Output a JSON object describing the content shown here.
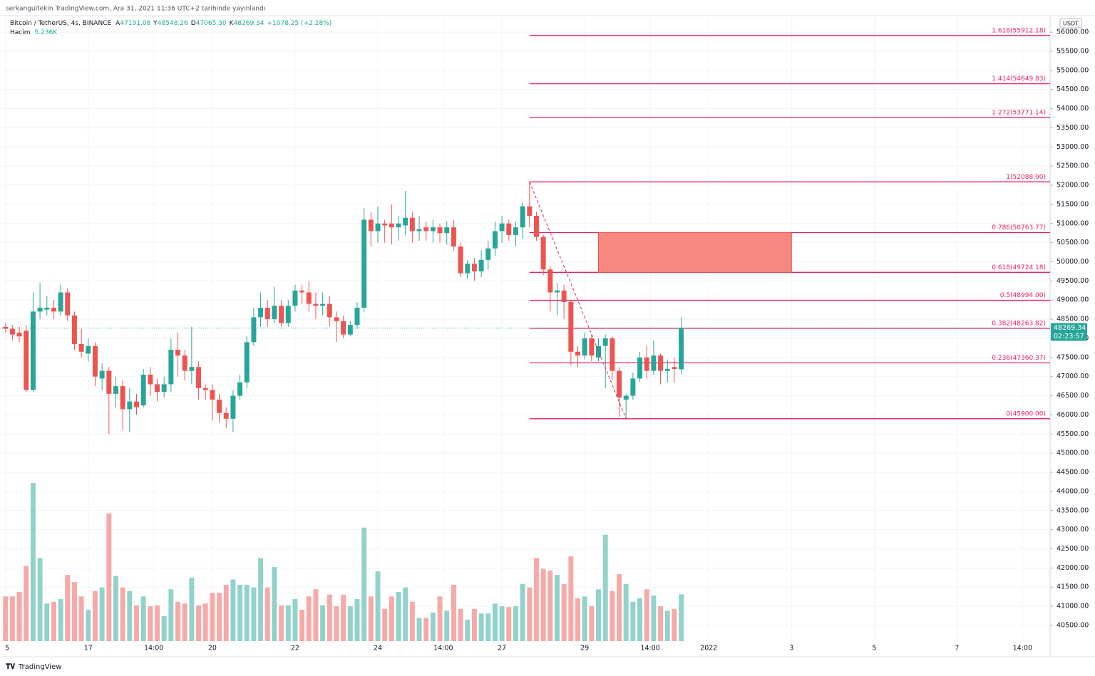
{
  "header": "serkangultekin TradingView.com, Ara 31, 2021 11:36 UTC+2 tarihinde yayınlandı",
  "footer": "TradingView",
  "chart_data": {
    "type": "candlestick",
    "legend": {
      "symbol": "Bitcoin / TetherUS, 4s, BINANCE",
      "ohlc": [
        {
          "key": "A",
          "value": "47191.08"
        },
        {
          "key": "Y",
          "value": "48548.26"
        },
        {
          "key": "D",
          "value": "47065.30"
        },
        {
          "key": "K",
          "value": "48269.34"
        }
      ],
      "change": "+1078.25 (+2.28%)",
      "volume_name": "Hacim",
      "volume_value": "5.236K"
    },
    "currency": "USDT",
    "countdown": "02:23:57",
    "up_color": "#26a69a",
    "down_color": "#ef5350",
    "volume_up_color": "#92d2cc",
    "volume_down_color": "#f7a9a7",
    "fib_color": "#e91e63",
    "zone_color": "#f7877f",
    "open": [
      48300,
      48250,
      48150,
      48200,
      46650,
      48700,
      48750,
      48800,
      48700,
      49200,
      48600,
      47850,
      47600,
      47800,
      46950,
      47150,
      46550,
      46750,
      46150,
      46350,
      46250,
      47050,
      46800,
      46600,
      46800,
      47700,
      47550,
      47150,
      47250,
      46700,
      46650,
      46400,
      46050,
      45900,
      46500,
      46850,
      47900,
      48550,
      48800,
      48500,
      48850,
      48400,
      48850,
      49250,
      49200,
      48900,
      48850,
      48900,
      48550,
      48450,
      48100,
      48350,
      48800,
      51100,
      50800,
      51000,
      51000,
      50900,
      50950,
      51150,
      50800,
      50900,
      50800,
      50900,
      50750,
      50900,
      50400,
      49700,
      49950,
      49750,
      50050,
      50350,
      50800,
      51000,
      50700,
      50900,
      51450,
      51200,
      50650,
      49800,
      49200,
      49250,
      48950,
      47650,
      47550,
      48000,
      47500,
      47800,
      48000,
      47150,
      46400,
      46500,
      46950,
      47500,
      47150,
      47550,
      47150,
      47250,
      47191.08
    ],
    "high": [
      48400,
      48350,
      48300,
      48350,
      49200,
      49450,
      49100,
      49000,
      49400,
      49300,
      48700,
      48250,
      48000,
      47900,
      47350,
      47250,
      47000,
      46900,
      46700,
      46550,
      47200,
      47250,
      46950,
      47000,
      48000,
      48150,
      47700,
      48300,
      47400,
      46800,
      46800,
      46550,
      46200,
      46650,
      47050,
      48050,
      48800,
      49200,
      49000,
      49350,
      49000,
      49000,
      49400,
      49400,
      49500,
      49200,
      49200,
      49100,
      48700,
      48600,
      48450,
      48950,
      51400,
      51300,
      51450,
      51100,
      51500,
      51200,
      51850,
      51300,
      51200,
      51050,
      51100,
      51000,
      51050,
      51100,
      50500,
      50050,
      50100,
      50300,
      50550,
      51050,
      51200,
      51100,
      51050,
      51550,
      52088,
      51300,
      50700,
      49900,
      49450,
      49400,
      49000,
      47800,
      48150,
      48100,
      48000,
      48100,
      48050,
      47250,
      46550,
      47100,
      47650,
      47800,
      47950,
      47600,
      47450,
      47500,
      48548.26
    ],
    "low": [
      48150,
      47950,
      47900,
      46600,
      46600,
      48500,
      48600,
      48500,
      48600,
      48450,
      47700,
      47500,
      47400,
      46750,
      46650,
      45500,
      46200,
      45600,
      45550,
      46000,
      46200,
      46500,
      46350,
      46450,
      46600,
      47000,
      46900,
      46800,
      46400,
      46400,
      45850,
      45800,
      45650,
      45550,
      46400,
      46700,
      47800,
      48300,
      48300,
      48400,
      48300,
      48300,
      48700,
      48900,
      48700,
      48500,
      48600,
      48300,
      47900,
      48000,
      48050,
      48250,
      48700,
      50400,
      50500,
      50500,
      50450,
      50550,
      50700,
      50500,
      50550,
      50550,
      50500,
      50500,
      50450,
      50300,
      49600,
      49550,
      49500,
      49600,
      49800,
      50150,
      50500,
      50550,
      50400,
      50600,
      50900,
      50550,
      49650,
      48700,
      48600,
      48500,
      47300,
      47250,
      47450,
      47400,
      47400,
      46700,
      46900,
      45950,
      45900,
      46400,
      46850,
      46950,
      47050,
      46800,
      46850,
      46850,
      47065.3
    ],
    "close": [
      48250,
      48100,
      48050,
      46650,
      48700,
      48800,
      48800,
      48700,
      49200,
      48600,
      47850,
      47650,
      47800,
      47000,
      47150,
      46550,
      46750,
      46150,
      46350,
      46200,
      47050,
      46800,
      46600,
      46800,
      47700,
      47550,
      47150,
      47250,
      46700,
      46650,
      46400,
      46050,
      45900,
      46500,
      46850,
      47900,
      48550,
      48800,
      48500,
      48850,
      48400,
      48850,
      49250,
      49200,
      48900,
      48850,
      48900,
      48550,
      48450,
      48100,
      48350,
      48800,
      51100,
      50800,
      51000,
      50950,
      50900,
      51000,
      51150,
      50800,
      50850,
      50800,
      50900,
      50750,
      50900,
      50400,
      49700,
      49950,
      49750,
      50050,
      50350,
      50800,
      51000,
      50700,
      50900,
      51450,
      51200,
      50650,
      49800,
      49200,
      49250,
      48950,
      47650,
      47550,
      48000,
      47550,
      47800,
      48000,
      47150,
      46450,
      46500,
      46950,
      47500,
      47150,
      47550,
      47150,
      47200,
      47200,
      48269.34
    ],
    "volume": [
      5.0,
      5.0,
      5.5,
      8.4,
      17.7,
      9.3,
      4.2,
      4.4,
      4.7,
      7.4,
      6.6,
      5.0,
      3.5,
      5.6,
      6.0,
      14.3,
      7.3,
      6.0,
      5.6,
      4.0,
      5.0,
      3.9,
      4.0,
      2.8,
      5.8,
      4.4,
      4.2,
      7.1,
      4.0,
      4.2,
      5.4,
      5.4,
      6.3,
      6.9,
      6.3,
      6.3,
      6.0,
      9.3,
      6.0,
      8.3,
      4.0,
      4.0,
      4.7,
      3.5,
      5.0,
      5.8,
      4.0,
      5.2,
      3.9,
      5.2,
      3.9,
      4.7,
      12.7,
      5.0,
      7.8,
      3.6,
      5.0,
      5.5,
      6.0,
      4.4,
      2.6,
      2.6,
      3.2,
      5.0,
      3.4,
      6.3,
      3.6,
      2.4,
      3.6,
      3.1,
      3.1,
      4.2,
      3.9,
      3.8,
      3.9,
      6.4,
      6.0,
      9.3,
      8.1,
      7.9,
      7.4,
      6.4,
      9.5,
      4.8,
      5.0,
      3.9,
      5.8,
      11.9,
      5.6,
      7.5,
      6.4,
      4.4,
      4.8,
      5.8,
      5.1,
      3.9,
      3.4,
      3.6,
      5.236
    ],
    "volume_ylim": [
      0,
      70
    ],
    "xlim": [
      -0.8,
      151.5
    ],
    "xticks": [
      {
        "value": 0,
        "label": "5"
      },
      {
        "value": 12,
        "label": "17"
      },
      {
        "value": 21.5,
        "label": "14:00"
      },
      {
        "value": 30,
        "label": "20"
      },
      {
        "value": 42,
        "label": "22"
      },
      {
        "value": 54,
        "label": "24"
      },
      {
        "value": 63.5,
        "label": "14:00"
      },
      {
        "value": 72,
        "label": "27"
      },
      {
        "value": 84,
        "label": "29"
      },
      {
        "value": 93.5,
        "label": "14:00"
      },
      {
        "value": 102,
        "label": "2022"
      },
      {
        "value": 114,
        "label": "3"
      },
      {
        "value": 126,
        "label": "5"
      },
      {
        "value": 138,
        "label": "7"
      },
      {
        "value": 147.5,
        "label": "14:00"
      }
    ],
    "ylim": [
      40090,
      56430
    ],
    "yticks": [
      {
        "value": 40500,
        "label": "40500.00"
      },
      {
        "value": 41000,
        "label": "41000.00"
      },
      {
        "value": 41500,
        "label": "41500.00"
      },
      {
        "value": 42000,
        "label": "42000.00"
      },
      {
        "value": 42500,
        "label": "42500.00"
      },
      {
        "value": 43000,
        "label": "43000.00"
      },
      {
        "value": 43500,
        "label": "43500.00"
      },
      {
        "value": 44000,
        "label": "44000.00"
      },
      {
        "value": 44500,
        "label": "44500.00"
      },
      {
        "value": 45000,
        "label": "45000.00"
      },
      {
        "value": 45500,
        "label": "45500.00"
      },
      {
        "value": 46000,
        "label": "46000.00"
      },
      {
        "value": 46500,
        "label": "46500.00"
      },
      {
        "value": 47000,
        "label": "47000.00"
      },
      {
        "value": 47500,
        "label": "47500.00"
      },
      {
        "value": 48000,
        "label": "48000.00"
      },
      {
        "value": 48500,
        "label": "48500.00"
      },
      {
        "value": 49000,
        "label": "49000.00"
      },
      {
        "value": 49500,
        "label": "49500.00"
      },
      {
        "value": 50000,
        "label": "50000.00"
      },
      {
        "value": 50500,
        "label": "50500.00"
      },
      {
        "value": 51000,
        "label": "51000.00"
      },
      {
        "value": 51500,
        "label": "51500.00"
      },
      {
        "value": 52000,
        "label": "52000.00"
      },
      {
        "value": 52500,
        "label": "52500.00"
      },
      {
        "value": 53000,
        "label": "53000.00"
      },
      {
        "value": 53500,
        "label": "53500.00"
      },
      {
        "value": 54000,
        "label": "54000.00"
      },
      {
        "value": 54500,
        "label": "54500.00"
      },
      {
        "value": 55000,
        "label": "55000.00"
      },
      {
        "value": 55500,
        "label": "55500.00"
      },
      {
        "value": 56000,
        "label": "56000.00"
      }
    ],
    "grid": true,
    "fib_levels": [
      {
        "value": 55912.18,
        "label": "1.618(55912.18)"
      },
      {
        "value": 54649.83,
        "label": "1.414(54649.83)"
      },
      {
        "value": 53771.14,
        "label": "1.272(53771.14)"
      },
      {
        "value": 52088,
        "label": "1(52088.00)"
      },
      {
        "value": 50763.77,
        "label": "0.786(50763.77)"
      },
      {
        "value": 49724.18,
        "label": "0.618(49724.18)"
      },
      {
        "value": 48994,
        "label": "0.5(48994.00)"
      },
      {
        "value": 48263.82,
        "label": "0.382(48263.82)"
      },
      {
        "value": 47360.37,
        "label": "0.236(47360.37)"
      },
      {
        "value": 45900,
        "label": "0(45900.00)"
      }
    ],
    "zone": {
      "xlim": [
        86,
        114
      ],
      "ylim": [
        49724.18,
        50763.77
      ]
    }
  }
}
